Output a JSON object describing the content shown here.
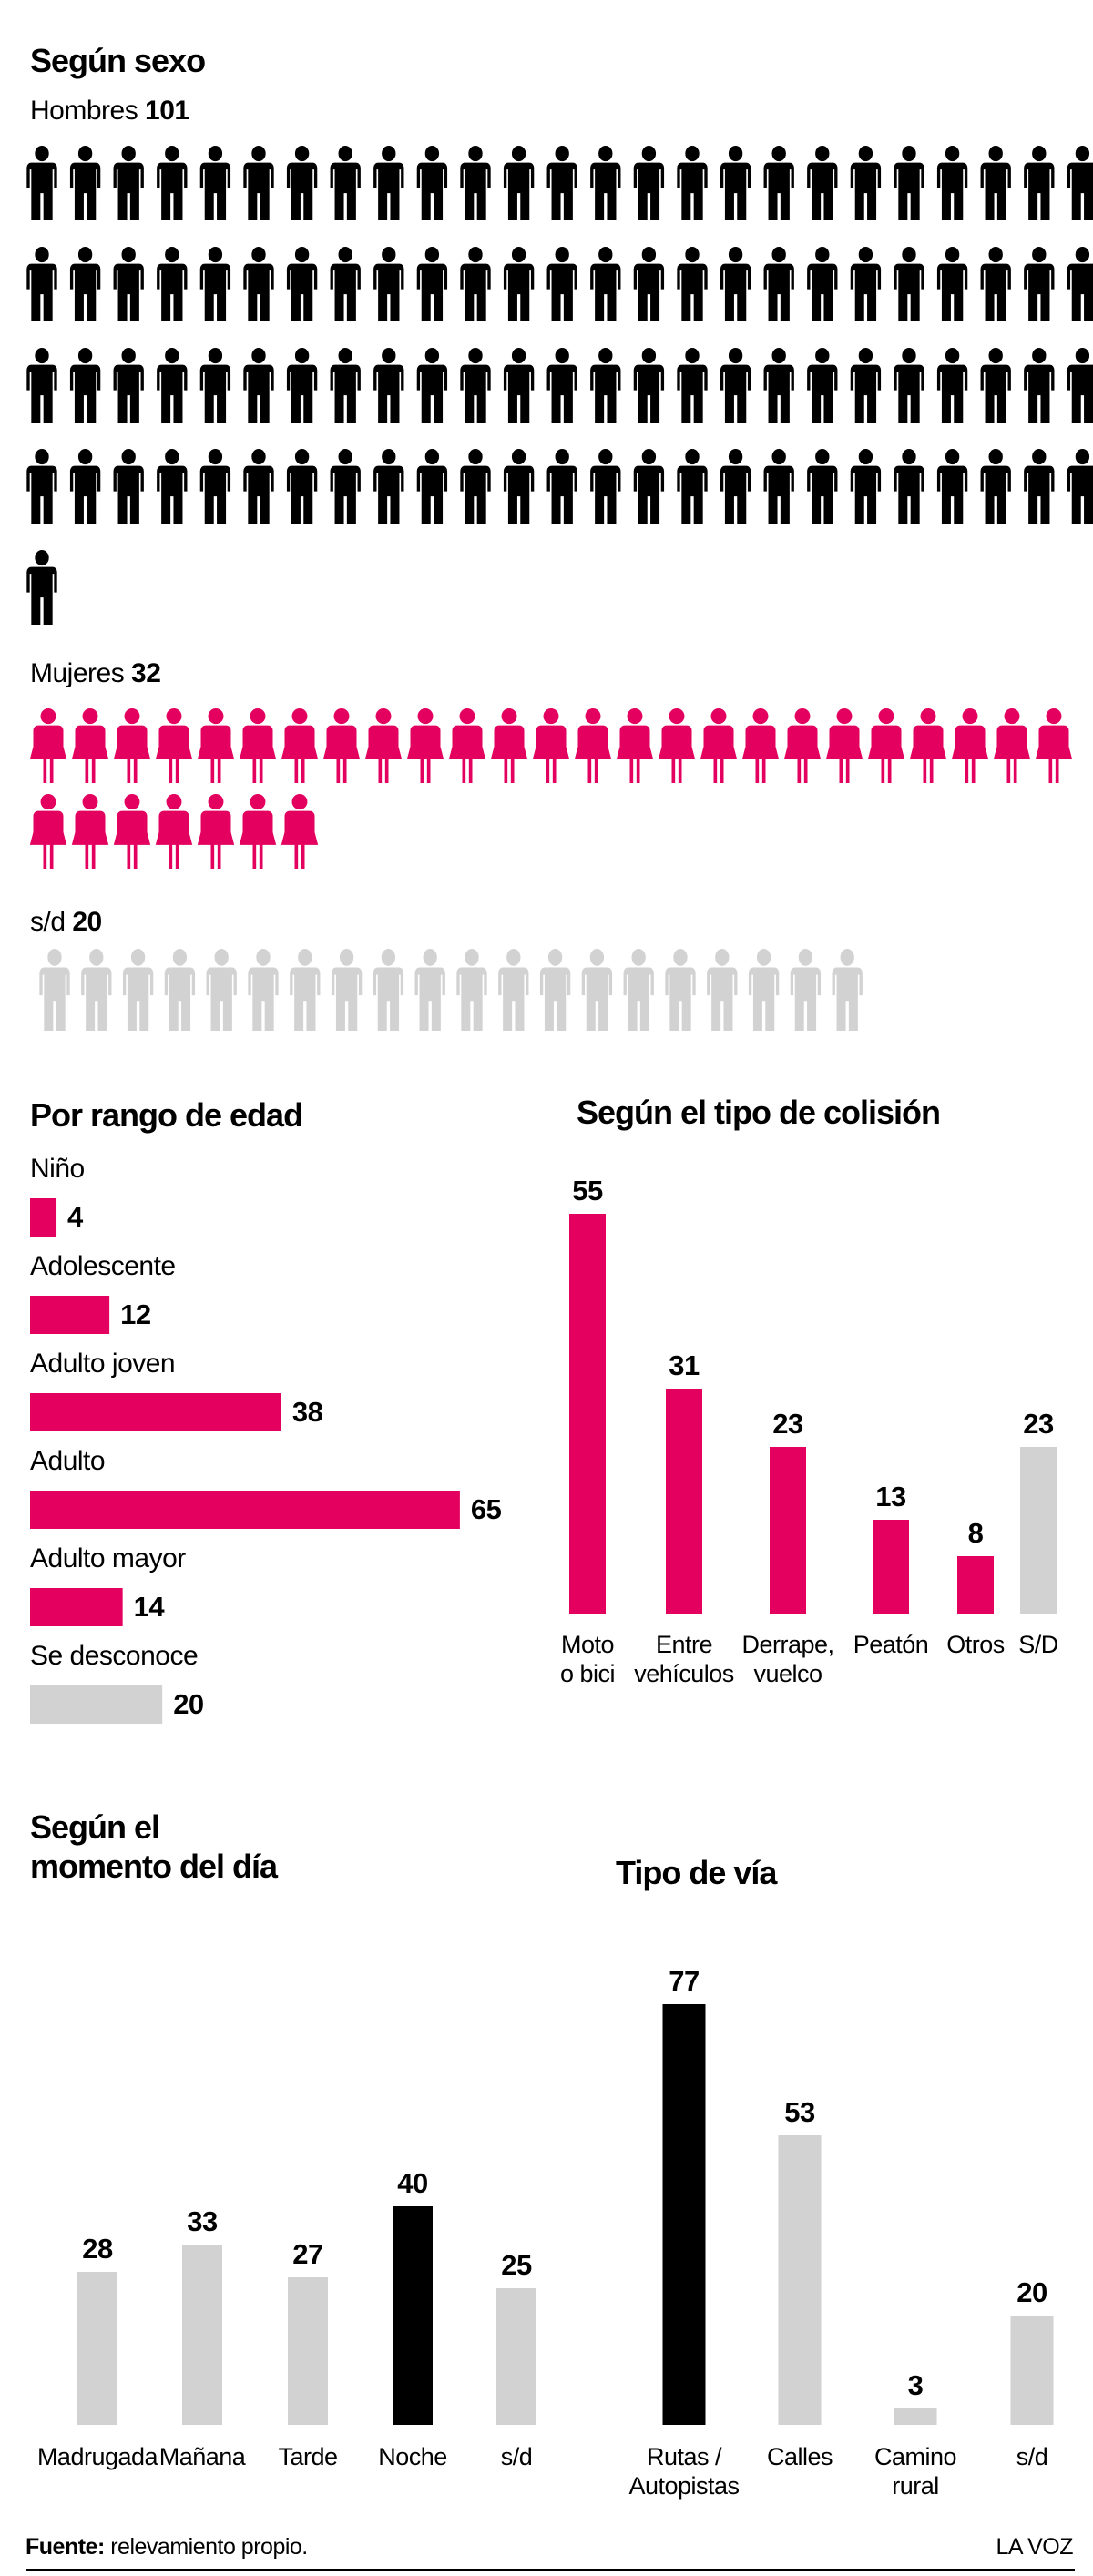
{
  "chart_data": [
    {
      "type": "pictogram",
      "title": "Según sexo",
      "series": [
        {
          "name": "Hombres",
          "value": 101,
          "color": "#000000",
          "icon": "man"
        },
        {
          "name": "Mujeres",
          "value": 32,
          "color": "#e3005f",
          "icon": "woman"
        },
        {
          "name": "s/d",
          "value": 20,
          "color": "#d2d2d2",
          "icon": "man"
        }
      ]
    },
    {
      "type": "hbar",
      "title": "Por rango de edad",
      "categories": [
        "Niño",
        "Adolescente",
        "Adulto joven",
        "Adulto",
        "Adulto mayor",
        "Se desconoce"
      ],
      "values": [
        4,
        12,
        38,
        65,
        14,
        20
      ],
      "colors": [
        "#e3005f",
        "#e3005f",
        "#e3005f",
        "#e3005f",
        "#e3005f",
        "#d2d2d2"
      ]
    },
    {
      "type": "bar",
      "title": "Según el tipo de colisión",
      "categories": [
        "Moto\no bici",
        "Entre\nvehículos",
        "Derrape,\nvuelco",
        "Peatón",
        "Otros",
        "S/D"
      ],
      "values": [
        55,
        31,
        23,
        13,
        8,
        23
      ],
      "colors": [
        "#e3005f",
        "#e3005f",
        "#e3005f",
        "#e3005f",
        "#e3005f",
        "#d2d2d2"
      ]
    },
    {
      "type": "bar",
      "title": "Según el\nmomento del día",
      "categories": [
        "Madrugada",
        "Mañana",
        "Tarde",
        "Noche",
        "s/d"
      ],
      "values": [
        28,
        33,
        27,
        40,
        25
      ],
      "colors": [
        "#d2d2d2",
        "#d2d2d2",
        "#d2d2d2",
        "#000000",
        "#d2d2d2"
      ]
    },
    {
      "type": "bar",
      "title": "Tipo de vía",
      "categories": [
        "Rutas /\nAutopistas",
        "Calles",
        "Camino\nrural",
        "s/d"
      ],
      "values": [
        77,
        53,
        3,
        20
      ],
      "colors": [
        "#000000",
        "#d2d2d2",
        "#d2d2d2",
        "#d2d2d2"
      ]
    }
  ],
  "footer": {
    "source_label": "Fuente:",
    "source": "relevamiento propio.",
    "brand": "LA VOZ"
  }
}
